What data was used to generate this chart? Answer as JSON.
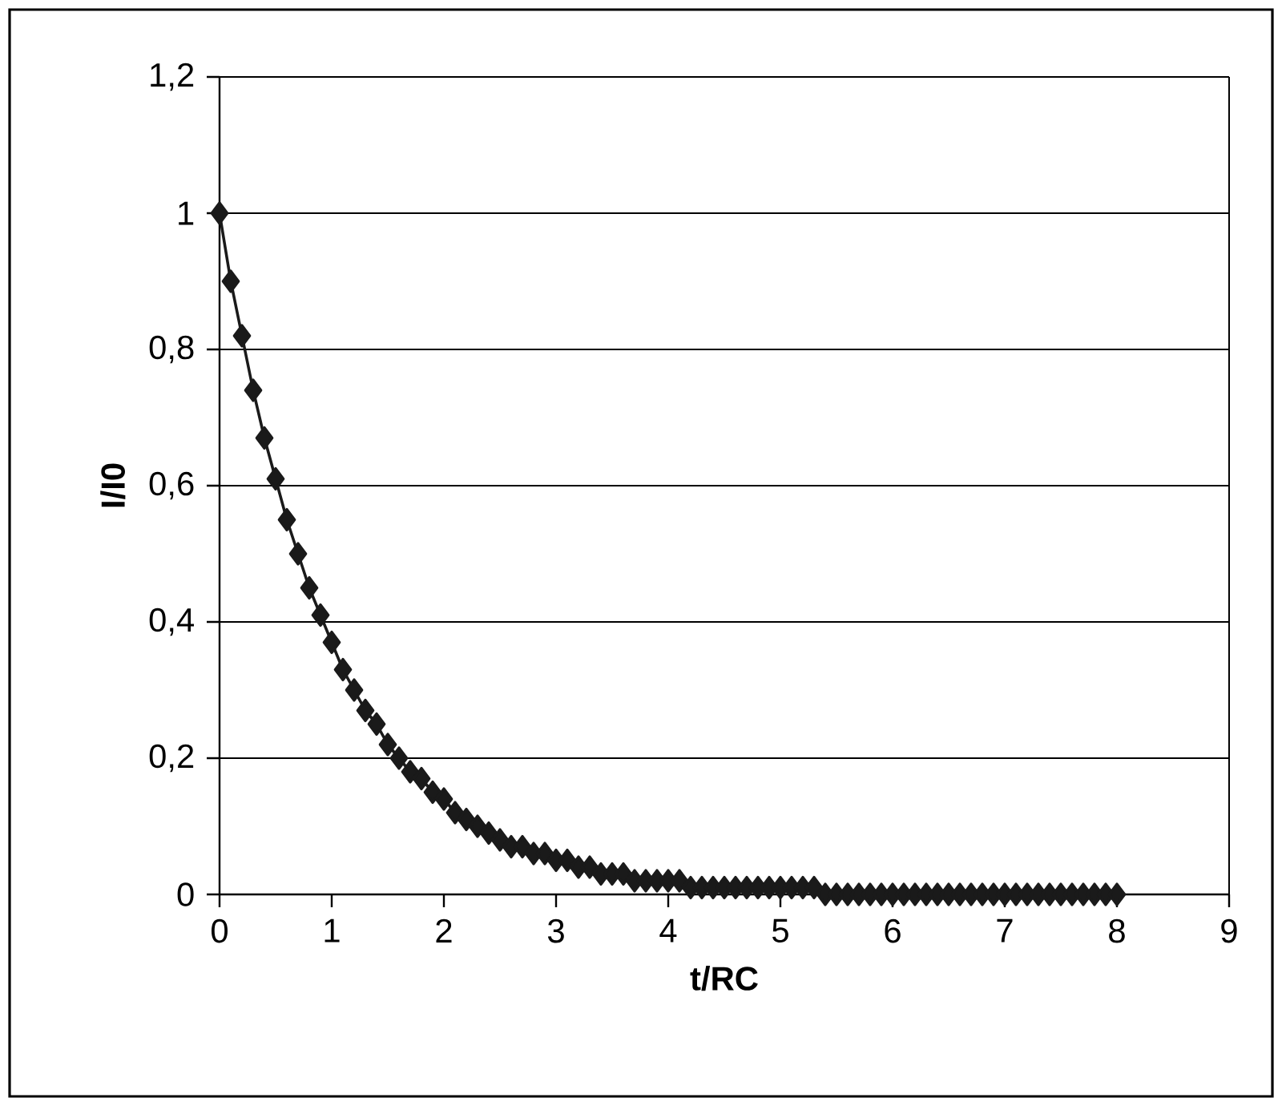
{
  "chart_data": {
    "type": "line",
    "xlabel": "t/RC",
    "ylabel": "I/I0",
    "x": [
      0,
      0.1,
      0.2,
      0.3,
      0.4,
      0.5,
      0.6,
      0.7,
      0.8,
      0.9,
      1,
      1.1,
      1.2,
      1.3,
      1.4,
      1.5,
      1.6,
      1.7,
      1.8,
      1.9,
      2,
      2.1,
      2.2,
      2.3,
      2.4,
      2.5,
      2.6,
      2.7,
      2.8,
      2.9,
      3,
      3.1,
      3.2,
      3.3,
      3.4,
      3.5,
      3.6,
      3.7,
      3.8,
      3.9,
      4,
      4.1,
      4.2,
      4.3,
      4.4,
      4.5,
      4.6,
      4.7,
      4.8,
      4.9,
      5,
      5.1,
      5.2,
      5.3,
      5.4,
      5.5,
      5.6,
      5.7,
      5.8,
      5.9,
      6,
      6.1,
      6.2,
      6.3,
      6.4,
      6.5,
      6.6,
      6.7,
      6.8,
      6.9,
      7,
      7.1,
      7.2,
      7.3,
      7.4,
      7.5,
      7.6,
      7.7,
      7.8,
      7.9,
      8
    ],
    "series": [
      {
        "color": "#1a1a1a",
        "values": [
          1,
          0.9,
          0.82,
          0.74,
          0.67,
          0.61,
          0.55,
          0.5,
          0.45,
          0.41,
          0.37,
          0.33,
          0.3,
          0.27,
          0.25,
          0.22,
          0.2,
          0.18,
          0.17,
          0.15,
          0.14,
          0.12,
          0.11,
          0.1,
          0.09,
          0.08,
          0.07,
          0.07,
          0.06,
          0.06,
          0.05,
          0.05,
          0.04,
          0.04,
          0.03,
          0.03,
          0.03,
          0.02,
          0.02,
          0.02,
          0.02,
          0.02,
          0.01,
          0.01,
          0.01,
          0.01,
          0.01,
          0.01,
          0.01,
          0.01,
          0.01,
          0.01,
          0.01,
          0.01,
          0,
          0,
          0,
          0,
          0,
          0,
          0,
          0,
          0,
          0,
          0,
          0,
          0,
          0,
          0,
          0,
          0,
          0,
          0,
          0,
          0,
          0,
          0,
          0,
          0,
          0,
          0
        ]
      }
    ],
    "xlim": [
      0,
      9
    ],
    "xticks": [
      0,
      1,
      2,
      3,
      4,
      5,
      6,
      7,
      8,
      9
    ],
    "ylim": [
      0,
      1.2
    ],
    "yticks": [
      0,
      {
        "value": 0.2,
        "label": "0,2"
      },
      {
        "value": 0.4,
        "label": "0,4"
      },
      {
        "value": 0.6,
        "label": "0,6"
      },
      {
        "value": 0.8,
        "label": "0,8"
      },
      1,
      {
        "value": 1.2,
        "label": "1,2"
      }
    ],
    "grid": "y",
    "marker": "diamond",
    "line_style": "solid"
  }
}
